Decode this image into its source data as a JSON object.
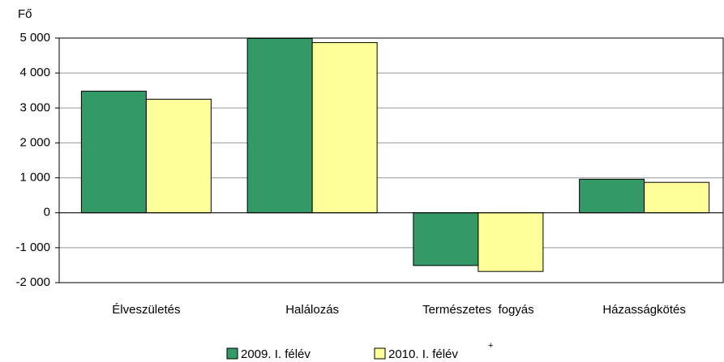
{
  "chart_data": {
    "type": "bar",
    "y_label": "Fő",
    "categories": [
      "Élveszületés",
      "Halálozás",
      "Természetes  fogyás",
      "Házasságkötés"
    ],
    "series": [
      {
        "name": "2009. I. félév",
        "color": "#339966",
        "values": [
          3480,
          4990,
          -1510,
          960
        ]
      },
      {
        "name": "2010. I. félév",
        "name_superscript": "+",
        "color": "#ffff99",
        "values": [
          3250,
          4870,
          -1680,
          870
        ]
      }
    ],
    "ylim": [
      -2000,
      5000
    ],
    "yticks": [
      {
        "value": -2000,
        "label": "-2 000"
      },
      {
        "value": -1000,
        "label": "-1 000"
      },
      0,
      {
        "value": 1000,
        "label": "1 000"
      },
      {
        "value": 2000,
        "label": "2 000"
      },
      {
        "value": 3000,
        "label": "3 000"
      },
      {
        "value": 4000,
        "label": "4 000"
      },
      {
        "value": 5000,
        "label": "5 000"
      }
    ],
    "grid": true,
    "legend": "bottom"
  }
}
